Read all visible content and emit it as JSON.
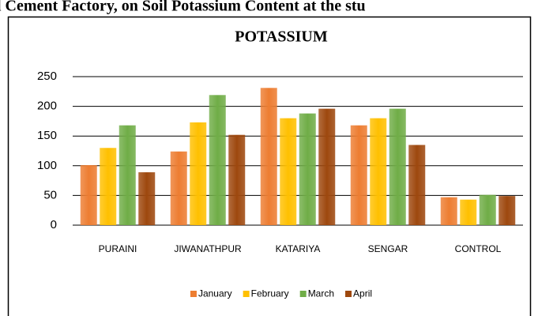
{
  "page_heading": "l Cement Factory, on Soil Potassium Content at the stu",
  "chart_data": {
    "type": "bar",
    "title": "POTASSIUM",
    "categories": [
      "PURAINI",
      "JIWANATHPUR",
      "KATARIYA",
      "SENGAR",
      "CONTROL"
    ],
    "series": [
      {
        "name": "January",
        "color": "#ed7d31",
        "values": [
          101,
          124,
          231,
          168,
          47
        ]
      },
      {
        "name": "February",
        "color": "#ffc000",
        "values": [
          130,
          173,
          180,
          180,
          43
        ]
      },
      {
        "name": "March",
        "color": "#70ad47",
        "values": [
          168,
          219,
          188,
          196,
          51
        ]
      },
      {
        "name": "April",
        "color": "#9e480e",
        "values": [
          89,
          152,
          196,
          135,
          49
        ]
      }
    ],
    "ylim": [
      0,
      250
    ],
    "yticks": [
      0,
      50,
      100,
      150,
      200,
      250
    ],
    "grid": true,
    "legend": "bottom"
  }
}
